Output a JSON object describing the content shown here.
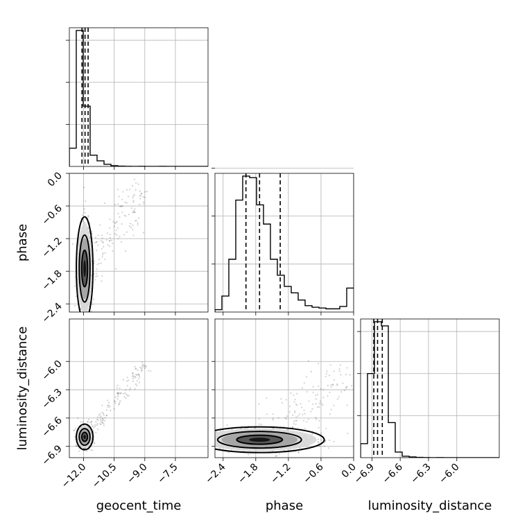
{
  "chart_data": {
    "type": "corner",
    "parameters": [
      "geocent_time",
      "phase",
      "luminosity_distance"
    ],
    "labels": [
      "geocent_time",
      "phase",
      "luminosity_distance"
    ],
    "ranges": {
      "geocent_time": [
        -12.7,
        -5.9
      ],
      "phase": [
        -2.55,
        0.0
      ],
      "luminosity_distance": [
        -7.02,
        -5.55
      ]
    },
    "ticks": {
      "geocent_time": [
        -12.0,
        -10.5,
        -9.0,
        -7.5
      ],
      "phase": [
        -2.4,
        -1.8,
        -1.2,
        -0.6,
        0.0
      ],
      "luminosity_distance": [
        -6.9,
        -6.6,
        -6.3,
        -6.0
      ]
    },
    "tick_labels": {
      "geocent_time": [
        "−12.0",
        "−10.5",
        "−9.0",
        "−7.5"
      ],
      "phase": [
        "−2.4",
        "−1.8",
        "−1.2",
        "−0.6",
        "0.0"
      ],
      "luminosity_distance": [
        "−6.9",
        "−6.6",
        "−6.3",
        "−6.0"
      ]
    },
    "histograms": {
      "geocent_time": {
        "bins": [
          -12.7,
          -12.36,
          -12.02,
          -11.68,
          -11.34,
          -11.0,
          -10.66,
          -10.32,
          -9.98,
          -9.64,
          -9.3,
          -8.96,
          -8.62,
          -8.28,
          -7.94,
          -7.6,
          -7.26,
          -6.92,
          -6.58,
          -6.24,
          -5.9
        ],
        "counts": [
          0.13,
          0.97,
          0.43,
          0.08,
          0.04,
          0.015,
          0.005,
          0.002,
          0.001,
          0.0,
          0.001,
          0.0,
          0.0,
          0.001,
          0.0,
          0.0,
          0.0,
          0.0,
          0.0,
          0.0
        ],
        "quantiles": [
          -12.08,
          -11.93,
          -11.78
        ]
      },
      "phase": {
        "bins": [
          -2.55,
          -2.4225,
          -2.295,
          -2.1675,
          -2.04,
          -1.9125,
          -1.785,
          -1.6575,
          -1.53,
          -1.4025,
          -1.275,
          -1.1475,
          -1.02,
          -0.8925,
          -0.765,
          -0.6375,
          -0.51,
          -0.3825,
          -0.255,
          -0.1275,
          0.0
        ],
        "counts": [
          0.015,
          0.1,
          0.33,
          0.7,
          0.85,
          0.84,
          0.67,
          0.55,
          0.33,
          0.23,
          0.16,
          0.12,
          0.075,
          0.04,
          0.03,
          0.025,
          0.02,
          0.02,
          0.035,
          0.15
        ],
        "quantiles": [
          -1.98,
          -1.73,
          -1.35
        ]
      },
      "luminosity_distance": {
        "bins": [
          -7.02,
          -6.9465,
          -6.873,
          -6.7995,
          -6.726,
          -6.6525,
          -6.579,
          -6.5055,
          -6.432,
          -6.3585,
          -6.285,
          -6.2115,
          -6.138,
          -6.0645,
          -5.991,
          -5.9175,
          -5.844,
          -5.7705,
          -5.697,
          -5.6235,
          -5.55
        ],
        "counts": [
          0.1,
          0.6,
          0.97,
          0.94,
          0.25,
          0.04,
          0.01,
          0.005,
          0.002,
          0.001,
          0.0,
          0.001,
          0.0,
          0.0,
          0.0,
          0.0,
          0.0,
          0.0,
          0.0,
          0.0
        ],
        "quantiles": [
          -6.88,
          -6.84,
          -6.79
        ]
      }
    },
    "posterior_modes": {
      "geocent_time_vs_phase": {
        "x": -11.95,
        "y": -1.75,
        "sx": 0.12,
        "sy": 0.28
      },
      "geocent_time_vs_luminosity_distance": {
        "x": -11.95,
        "y": -6.8,
        "sx": 0.12,
        "sy": 0.04
      },
      "phase_vs_luminosity_distance": {
        "x": -1.73,
        "y": -6.83,
        "sx": 0.35,
        "sy": 0.04
      }
    },
    "grid": true
  }
}
